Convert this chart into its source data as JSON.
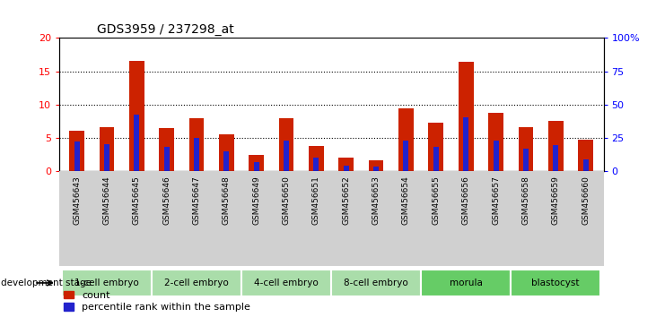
{
  "title": "GDS3959 / 237298_at",
  "samples": [
    "GSM456643",
    "GSM456644",
    "GSM456645",
    "GSM456646",
    "GSM456647",
    "GSM456648",
    "GSM456649",
    "GSM456650",
    "GSM456651",
    "GSM456652",
    "GSM456653",
    "GSM456654",
    "GSM456655",
    "GSM456656",
    "GSM456657",
    "GSM456658",
    "GSM456659",
    "GSM456660"
  ],
  "count_values": [
    6.1,
    6.6,
    16.5,
    6.5,
    8.0,
    5.6,
    2.5,
    8.0,
    3.8,
    2.1,
    1.7,
    9.4,
    7.3,
    16.4,
    8.8,
    6.6,
    7.6,
    4.7
  ],
  "percentile_values": [
    22.5,
    20.5,
    42.5,
    18.0,
    25.0,
    15.0,
    7.0,
    23.0,
    10.0,
    4.0,
    3.5,
    23.0,
    18.5,
    40.5,
    23.0,
    17.0,
    19.5,
    9.0
  ],
  "stage_groups": [
    {
      "label": "1-cell embryo",
      "start": 0,
      "end": 2,
      "color": "#aaddaa"
    },
    {
      "label": "2-cell embryo",
      "start": 3,
      "end": 5,
      "color": "#aaddaa"
    },
    {
      "label": "4-cell embryo",
      "start": 6,
      "end": 8,
      "color": "#aaddaa"
    },
    {
      "label": "8-cell embryo",
      "start": 9,
      "end": 11,
      "color": "#aaddaa"
    },
    {
      "label": "morula",
      "start": 12,
      "end": 14,
      "color": "#66cc66"
    },
    {
      "label": "blastocyst",
      "start": 15,
      "end": 17,
      "color": "#66cc66"
    }
  ],
  "ylim_left": [
    0,
    20
  ],
  "ylim_right": [
    0,
    100
  ],
  "yticks_left": [
    0,
    5,
    10,
    15,
    20
  ],
  "yticks_right": [
    0,
    25,
    50,
    75,
    100
  ],
  "bar_color_count": "#cc2200",
  "bar_color_pct": "#2222cc",
  "bar_width": 0.5,
  "pct_bar_width": 0.18,
  "grid_dotted_vals": [
    5,
    10,
    15
  ],
  "legend_count_label": "count",
  "legend_pct_label": "percentile rank within the sample",
  "dev_stage_label": "development stage"
}
